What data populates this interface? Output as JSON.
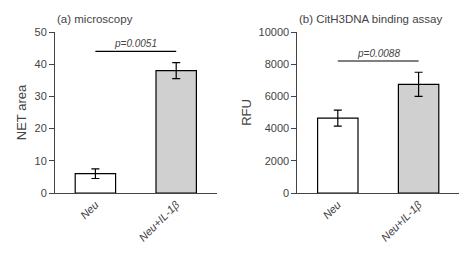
{
  "chart_data": [
    {
      "type": "bar",
      "title": "(a) microscopy",
      "ylabel": "NET area",
      "categories": [
        "Neu",
        "Neu+IL-1β"
      ],
      "values": [
        6.0,
        38.0
      ],
      "errors": [
        1.5,
        2.5
      ],
      "colors": [
        "#ffffff",
        "#d0d0d0"
      ],
      "ylim": [
        0,
        50
      ],
      "yticks": [
        0,
        10,
        20,
        30,
        40,
        50
      ],
      "grid": false,
      "annotations": [
        {
          "text": "p=0.0051",
          "y": 44
        }
      ]
    },
    {
      "type": "bar",
      "title": "(b) CitH3DNA binding assay",
      "ylabel": "RFU",
      "categories": [
        "Neu",
        "Neu+IL-1β"
      ],
      "values": [
        4650,
        6750
      ],
      "errors": [
        500,
        750
      ],
      "colors": [
        "#ffffff",
        "#d0d0d0"
      ],
      "ylim": [
        0,
        10000
      ],
      "yticks": [
        0,
        2000,
        4000,
        6000,
        8000,
        10000
      ],
      "grid": false,
      "annotations": [
        {
          "text": "p=0.0088",
          "y": 8200
        }
      ]
    }
  ]
}
